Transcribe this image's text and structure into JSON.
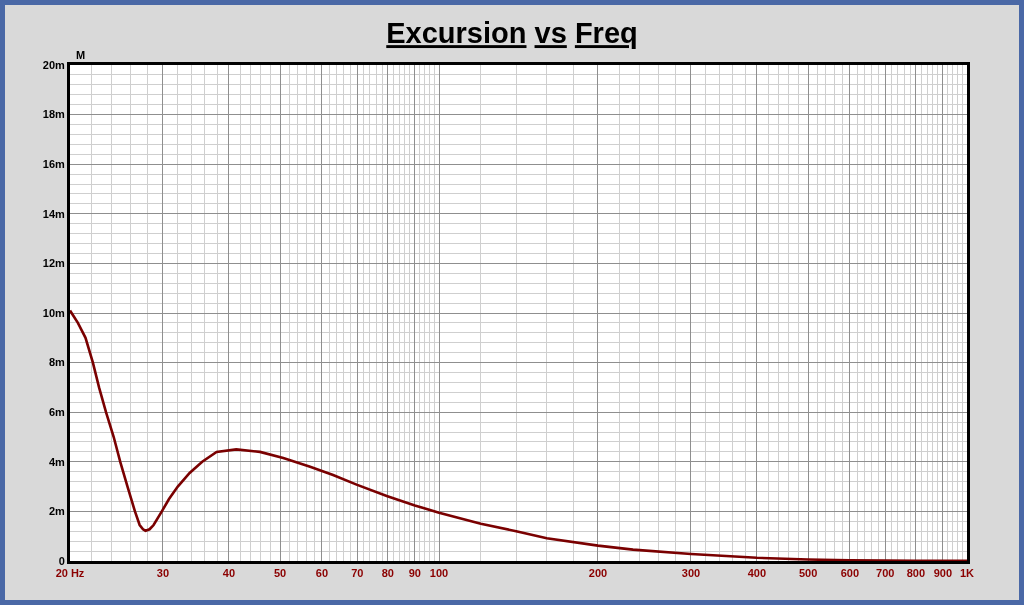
{
  "chart_data": {
    "type": "line",
    "title": "Excursion vs Freq",
    "ylabel": "M",
    "x": [
      20,
      20.7,
      21.4,
      22.1,
      22.7,
      23.4,
      24.2,
      24.9,
      25.7,
      26.55,
      27.1,
      27.5,
      27.8,
      28.3,
      28.8,
      29.85,
      30.8,
      32,
      33.7,
      35.6,
      37.9,
      41.3,
      45.8,
      50.7,
      57,
      63,
      69.8,
      79.6,
      90,
      100,
      120,
      140,
      160,
      200,
      233,
      300,
      400,
      500,
      600,
      700,
      800,
      1000
    ],
    "values": [
      10.1,
      9.6,
      9.0,
      8.0,
      7.0,
      6.0,
      5.0,
      4.0,
      3.0,
      2.0,
      1.45,
      1.28,
      1.22,
      1.28,
      1.45,
      2.0,
      2.5,
      3.0,
      3.55,
      4.0,
      4.4,
      4.5,
      4.4,
      4.15,
      3.8,
      3.47,
      3.08,
      2.62,
      2.24,
      1.95,
      1.5,
      1.2,
      0.92,
      0.62,
      0.46,
      0.28,
      0.13,
      0.06,
      0.03,
      0.02,
      0.01,
      0.01
    ],
    "color": "#7a0000",
    "log": "x",
    "grid": true,
    "marker": "none",
    "line_style": "solid",
    "xlim": [
      20,
      1000
    ],
    "xticks": [
      {
        "value": 20,
        "label": "20 Hz"
      },
      30,
      40,
      50,
      60,
      70,
      80,
      90,
      100,
      200,
      300,
      400,
      500,
      600,
      700,
      800,
      900,
      {
        "value": 1000,
        "label": "1K"
      }
    ],
    "ylim": [
      0,
      20
    ],
    "yticks": [
      0,
      {
        "value": 2,
        "label": "2m"
      },
      {
        "value": 4,
        "label": "4m"
      },
      {
        "value": 6,
        "label": "6m"
      },
      {
        "value": 8,
        "label": "8m"
      },
      {
        "value": 10,
        "label": "10m"
      },
      {
        "value": 12,
        "label": "12m"
      },
      {
        "value": 14,
        "label": "14m"
      },
      {
        "value": 16,
        "label": "16m"
      },
      {
        "value": 18,
        "label": "18m"
      },
      {
        "value": 20,
        "label": "20m"
      }
    ]
  }
}
